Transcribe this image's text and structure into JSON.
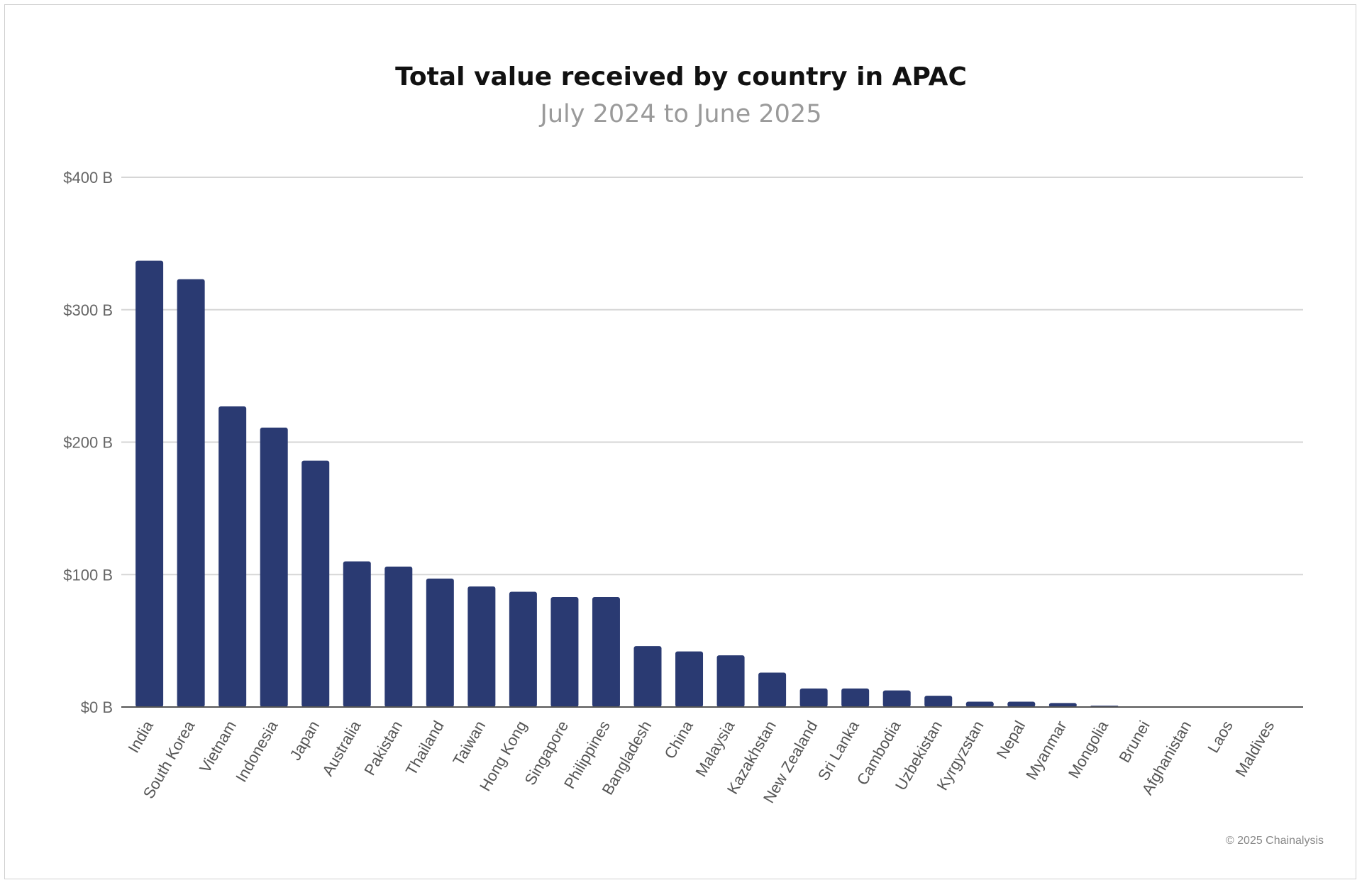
{
  "chart_data": {
    "type": "bar",
    "title": "Total value received by country in APAC",
    "subtitle": "July 2024 to June 2025",
    "xlabel": "",
    "ylabel": "",
    "ylim": [
      0,
      400
    ],
    "yticks": [
      0,
      100,
      200,
      300,
      400
    ],
    "ytick_labels": [
      "$0 B",
      "$100 B",
      "$200 B",
      "$300 B",
      "$400 B"
    ],
    "grid": true,
    "bar_color": "#2a3a72",
    "categories": [
      "India",
      "South Korea",
      "Vietnam",
      "Indonesia",
      "Japan",
      "Australia",
      "Pakistan",
      "Thailand",
      "Taiwan",
      "Hong Kong",
      "Singapore",
      "Philippines",
      "Bangladesh",
      "China",
      "Malaysia",
      "Kazakhstan",
      "New Zealand",
      "Sri Lanka",
      "Cambodia",
      "Uzbekistan",
      "Kyrgyzstan",
      "Nepal",
      "Myanmar",
      "Mongolia",
      "Brunei",
      "Afghanistan",
      "Laos",
      "Maldives"
    ],
    "values": [
      337,
      323,
      227,
      211,
      186,
      110,
      106,
      97,
      91,
      87,
      83,
      83,
      46,
      42,
      39,
      26,
      14,
      14,
      12.5,
      8.5,
      4,
      4,
      3,
      1,
      0.1,
      0.1,
      0.05,
      0.05
    ],
    "credit": "© 2025 Chainalysis"
  }
}
